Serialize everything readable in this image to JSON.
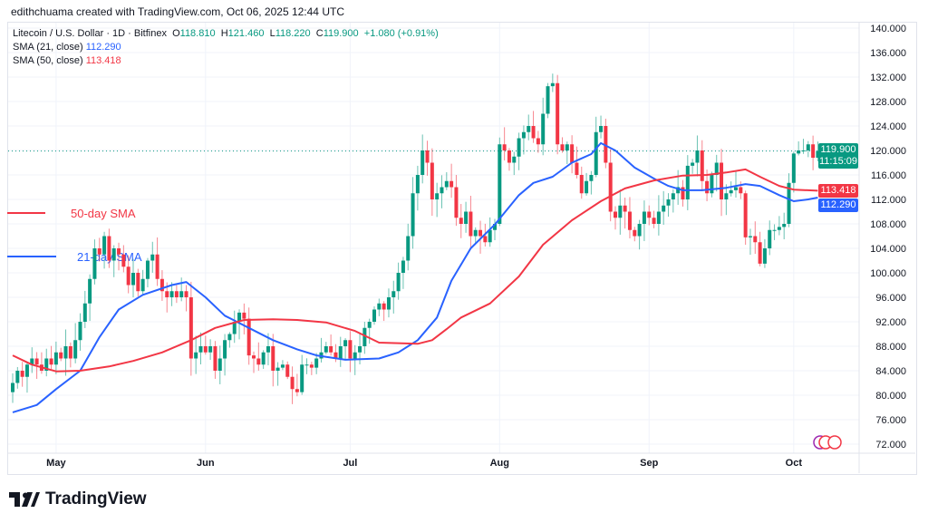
{
  "credit": "edithchuama created with TradingView.com, Oct 06, 2025 12:44 UTC",
  "legend": {
    "symbol": "Litecoin / U.S. Dollar · 1D · Bitfinex",
    "o_label": "O",
    "o": "118.810",
    "h_label": "H",
    "h": "121.460",
    "l_label": "L",
    "l": "118.220",
    "c_label": "C",
    "c": "119.900",
    "change": "+1.080 (+0.91%)",
    "sma21_label": "SMA (21, close)",
    "sma21": "112.290",
    "sma50_label": "SMA (50, close)",
    "sma50": "113.418"
  },
  "annotations": {
    "sma50": "50-day SMA",
    "sma21": "21-day SMA"
  },
  "price_tags": {
    "last": "119.900",
    "countdown": "11:15:09",
    "sma50": "113.418",
    "sma21": "112.290"
  },
  "brand": "TradingView",
  "colors": {
    "up": "#089981",
    "down": "#f23645",
    "sma21": "#2962ff",
    "sma50": "#f23645"
  },
  "chart_data": {
    "type": "candlestick",
    "title": "Litecoin / U.S. Dollar · 1D · Bitfinex",
    "start_date": "2025-04-22",
    "ylim": [
      70,
      140
    ],
    "yticks": [
      "72.000",
      "76.000",
      "80.000",
      "84.000",
      "88.000",
      "92.000",
      "96.000",
      "100.000",
      "104.000",
      "108.000",
      "112.000",
      "116.000",
      "120.000",
      "124.000",
      "128.000",
      "132.000",
      "136.000",
      "140.000"
    ],
    "xticks": [
      {
        "label": "May",
        "day": 9
      },
      {
        "label": "Jun",
        "day": 40
      },
      {
        "label": "Jul",
        "day": 70
      },
      {
        "label": "Aug",
        "day": 101
      },
      {
        "label": "Sep",
        "day": 132
      },
      {
        "label": "Oct",
        "day": 162
      }
    ],
    "closes": [
      82,
      84,
      83,
      85,
      86,
      85,
      84,
      86,
      85,
      87,
      86,
      88,
      86,
      89,
      92,
      95,
      99,
      104,
      103,
      106,
      102,
      104,
      103,
      101,
      98,
      100,
      97,
      99,
      102,
      103,
      99,
      97,
      96,
      97,
      96,
      97,
      96,
      86,
      87,
      88,
      87,
      88,
      84,
      86,
      89,
      90,
      92,
      93.5,
      92.5,
      86.5,
      86,
      85,
      87,
      88,
      84,
      84.5,
      85,
      83,
      81,
      80.5,
      85,
      85,
      84.5,
      86,
      87,
      88,
      87,
      86,
      88,
      89,
      86,
      87,
      88,
      91,
      92,
      94,
      95,
      94,
      96,
      97,
      100,
      102,
      106,
      113,
      116,
      120,
      118,
      112,
      113,
      114,
      115,
      114,
      109,
      108,
      110,
      106,
      107,
      106,
      105,
      107,
      108,
      121,
      120,
      118,
      119,
      122,
      123,
      124,
      122,
      121,
      126,
      130.5,
      131,
      121,
      120,
      121,
      118,
      116,
      113,
      115,
      116,
      123,
      124,
      118,
      110,
      109,
      111,
      110,
      107,
      106,
      108,
      110,
      109,
      108,
      110,
      111,
      112,
      113,
      114,
      112,
      117.5,
      118,
      120,
      115,
      113,
      116,
      118,
      112,
      113,
      113.5,
      114,
      113,
      105.8,
      106,
      105,
      101.5,
      104,
      107,
      107,
      107.5,
      108,
      114.7,
      119.5,
      120,
      120,
      121,
      118.81,
      119.9
    ],
    "last_ohlc": {
      "open": 118.81,
      "high": 121.46,
      "low": 118.22,
      "close": 119.9
    },
    "series": [
      {
        "name": "SMA (21, close)",
        "points": [
          [
            0,
            77.2
          ],
          [
            5,
            78.4
          ],
          [
            9,
            81
          ],
          [
            14,
            84
          ],
          [
            18,
            89.5
          ],
          [
            22,
            94
          ],
          [
            27,
            96.4
          ],
          [
            33,
            98
          ],
          [
            36,
            98.5
          ],
          [
            40,
            96
          ],
          [
            44,
            93
          ],
          [
            49,
            91
          ],
          [
            54,
            89
          ],
          [
            59,
            87.5
          ],
          [
            63,
            86.5
          ],
          [
            69,
            85.8
          ],
          [
            76,
            86
          ],
          [
            80,
            87
          ],
          [
            84,
            89
          ],
          [
            88,
            92.7
          ],
          [
            91,
            98.7
          ],
          [
            95,
            104
          ],
          [
            100,
            107.9
          ],
          [
            105,
            112.7
          ],
          [
            108,
            114.7
          ],
          [
            112,
            115.7
          ],
          [
            116,
            118
          ],
          [
            120,
            119.4
          ],
          [
            122,
            121.2
          ],
          [
            125,
            120
          ],
          [
            129,
            117.2
          ],
          [
            133,
            115.4
          ],
          [
            136,
            114.2
          ],
          [
            139,
            113.5
          ],
          [
            143,
            113.5
          ],
          [
            148,
            113.9
          ],
          [
            152,
            114.5
          ],
          [
            155,
            114.2
          ],
          [
            159,
            112.7
          ],
          [
            162,
            111.7
          ],
          [
            165,
            112
          ],
          [
            167,
            112.29
          ]
        ]
      },
      {
        "name": "SMA (50, close)",
        "points": [
          [
            0,
            86.5
          ],
          [
            4,
            85
          ],
          [
            9,
            83.9
          ],
          [
            14,
            84
          ],
          [
            20,
            84.7
          ],
          [
            25,
            85.6
          ],
          [
            31,
            87
          ],
          [
            37,
            89
          ],
          [
            42,
            91
          ],
          [
            48,
            92.3
          ],
          [
            54,
            92.4
          ],
          [
            59,
            92.3
          ],
          [
            65,
            91.9
          ],
          [
            71,
            90.5
          ],
          [
            76,
            88.6
          ],
          [
            84,
            88.4
          ],
          [
            87,
            89
          ],
          [
            90,
            90.8
          ],
          [
            93,
            92.7
          ],
          [
            99,
            95
          ],
          [
            105,
            99.4
          ],
          [
            110,
            104.6
          ],
          [
            116,
            108.6
          ],
          [
            122,
            111.7
          ],
          [
            127,
            113.8
          ],
          [
            133,
            115.1
          ],
          [
            139,
            115.9
          ],
          [
            144,
            116
          ],
          [
            148,
            116.4
          ],
          [
            152,
            116.9
          ],
          [
            155,
            115.7
          ],
          [
            159,
            114.2
          ],
          [
            162,
            113.6
          ],
          [
            167,
            113.418
          ]
        ]
      }
    ]
  }
}
